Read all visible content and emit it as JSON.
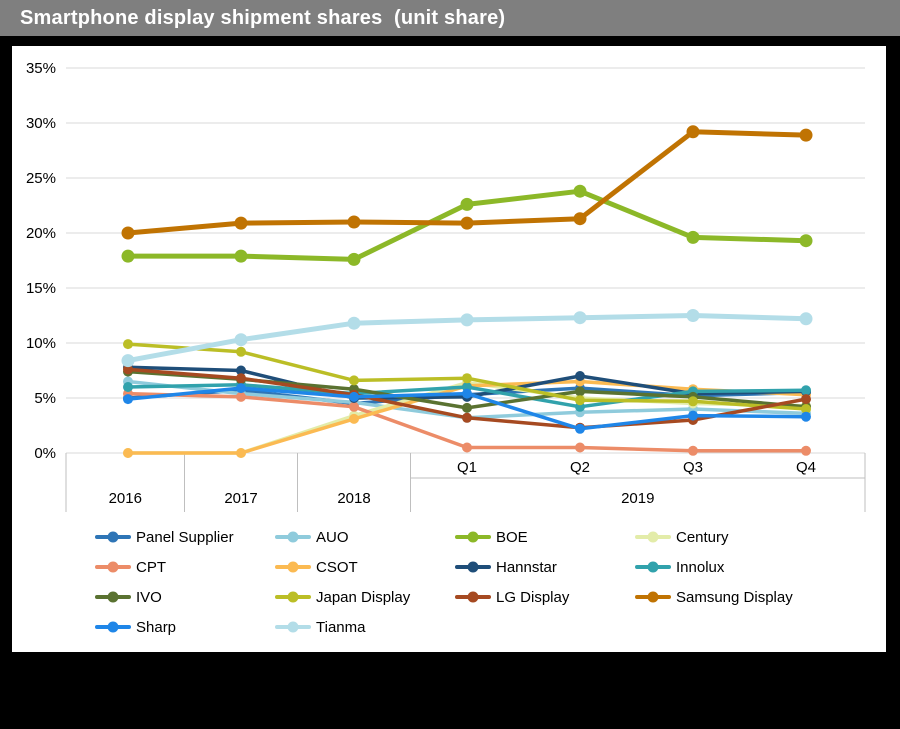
{
  "header": {
    "title": "Smartphone display shipment shares  (unit share)"
  },
  "colors": {
    "title_bar_bg": "#7f7f7f",
    "title_text": "#ffffff",
    "frame": "#000000",
    "panel_bg": "#ffffff",
    "gridline": "#d9d9d9",
    "axis_table_border": "#bfbfbf",
    "axis_text": "#000000"
  },
  "chart_data": {
    "type": "line",
    "title": "Smartphone display shipment shares  (unit share)",
    "categories": [
      "2016",
      "2017",
      "2018",
      "Q1",
      "Q2",
      "Q3",
      "Q4"
    ],
    "category_groups": [
      {
        "label": "2016",
        "count": 1
      },
      {
        "label": "2017",
        "count": 1
      },
      {
        "label": "2018",
        "count": 1
      },
      {
        "label": "2019",
        "count": 4
      }
    ],
    "xlabel": "",
    "ylabel": "",
    "ylim": [
      0,
      35
    ],
    "y_tick_step": 5,
    "y_tick_labels": [
      "0%",
      "5%",
      "10%",
      "15%",
      "20%",
      "25%",
      "30%",
      "35%"
    ],
    "grid": true,
    "legend_position": "bottom",
    "unit": "%",
    "series": [
      {
        "name": "Panel Supplier",
        "color": "#2e75b6",
        "values": [
          5.0,
          5.7,
          4.5,
          5.3,
          5.9,
          5.2,
          5.5
        ]
      },
      {
        "name": "AUO",
        "color": "#8fcbdc",
        "values": [
          6.5,
          5.4,
          4.6,
          3.2,
          3.7,
          4.0,
          3.6
        ]
      },
      {
        "name": "BOE",
        "color": "#8cb828",
        "values": [
          17.9,
          17.9,
          17.6,
          22.6,
          23.8,
          19.6,
          19.3
        ]
      },
      {
        "name": "Century",
        "color": "#e3eca9",
        "values": [
          0.0,
          0.0,
          3.4,
          6.4,
          5.0,
          4.5,
          4.3
        ]
      },
      {
        "name": "CPT",
        "color": "#ec8c68",
        "values": [
          5.4,
          5.1,
          4.2,
          0.5,
          0.5,
          0.2,
          0.2
        ]
      },
      {
        "name": "CSOT",
        "color": "#fbba52",
        "values": [
          0.0,
          0.0,
          3.1,
          6.1,
          6.5,
          5.8,
          5.3
        ]
      },
      {
        "name": "Hannstar",
        "color": "#1f4e79",
        "values": [
          7.8,
          7.5,
          5.0,
          5.1,
          7.0,
          5.4,
          5.6
        ]
      },
      {
        "name": "Innolux",
        "color": "#31a2ac",
        "values": [
          6.0,
          6.2,
          5.4,
          6.0,
          4.2,
          5.6,
          5.7
        ]
      },
      {
        "name": "IVO",
        "color": "#5a7231",
        "values": [
          7.4,
          6.7,
          5.8,
          4.1,
          5.6,
          5.1,
          4.2
        ]
      },
      {
        "name": "Japan Display",
        "color": "#bbbe26",
        "values": [
          9.9,
          9.2,
          6.6,
          6.8,
          4.8,
          4.7,
          4.0
        ]
      },
      {
        "name": "LG Display",
        "color": "#a64a21",
        "values": [
          7.6,
          6.8,
          5.3,
          3.2,
          2.3,
          3.0,
          4.9
        ]
      },
      {
        "name": "Samsung Display",
        "color": "#c07302",
        "values": [
          20.0,
          20.9,
          21.0,
          20.9,
          21.3,
          29.2,
          28.9
        ]
      },
      {
        "name": "Sharp",
        "color": "#1f86e8",
        "values": [
          4.9,
          5.9,
          5.1,
          5.4,
          2.2,
          3.4,
          3.3
        ]
      },
      {
        "name": "Tianma",
        "color": "#b3dde8",
        "values": [
          8.4,
          10.3,
          11.8,
          12.1,
          12.3,
          12.5,
          12.2
        ]
      }
    ]
  }
}
